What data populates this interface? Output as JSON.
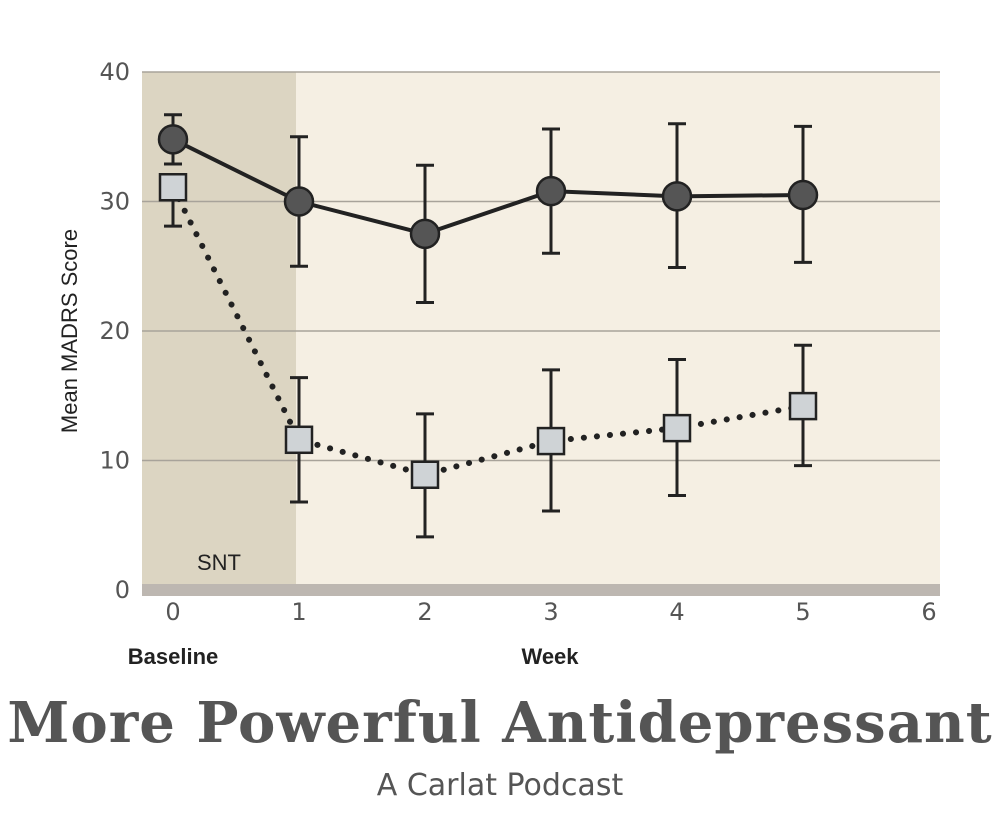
{
  "chart_data": {
    "type": "line",
    "xlabel": "Week",
    "x_extra_label": "Baseline",
    "ylabel": "Mean MADRS Score",
    "xlim": [
      0,
      6
    ],
    "ylim": [
      0,
      40
    ],
    "xticks": [
      "0",
      "1",
      "2",
      "3",
      "4",
      "5",
      "6"
    ],
    "yticks": [
      "0",
      "10",
      "20",
      "30",
      "40"
    ],
    "grid": true,
    "shaded_region": {
      "label": "SNT",
      "x_start": 0,
      "x_end": 1
    },
    "x": [
      0,
      1,
      2,
      3,
      4,
      5
    ],
    "series": [
      {
        "marker": "circle",
        "line": "solid",
        "values": [
          34.8,
          30.0,
          27.5,
          30.8,
          30.4,
          30.5
        ],
        "error_low": [
          32.9,
          25.0,
          22.2,
          26.0,
          24.9,
          25.3
        ],
        "error_high": [
          36.7,
          35.0,
          32.8,
          35.6,
          36.0,
          35.8
        ]
      },
      {
        "marker": "square",
        "line": "dotted",
        "values": [
          31.1,
          11.6,
          8.9,
          11.5,
          12.5,
          14.2
        ],
        "error_low": [
          28.1,
          6.8,
          4.1,
          6.1,
          7.3,
          9.6
        ],
        "error_high": [
          31.1,
          16.4,
          13.6,
          17.0,
          17.8,
          18.9
        ]
      }
    ],
    "colors": {
      "plot_bg": "#f5efe3",
      "shade_bg": "#dcd5c2",
      "grid": "#a8a39a",
      "axis_bar": "#bdb7b1",
      "series1": "#555555",
      "series2_fill": "#cfd3d6",
      "ink": "#222222"
    }
  },
  "banner": {
    "title": "More Powerful Antidepressant",
    "subtitle": "A Carlat Podcast"
  }
}
